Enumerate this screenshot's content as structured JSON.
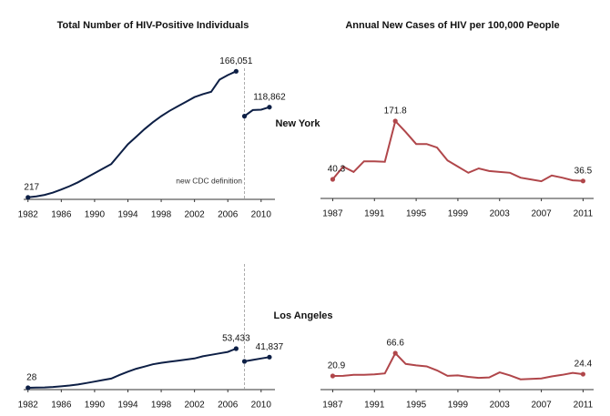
{
  "rows": [
    "New York",
    "Los Angeles"
  ],
  "chart_data": [
    {
      "type": "line",
      "title": "Total Number of HIV-Positive Individuals",
      "annotation": "new CDC definition",
      "reference_x": 2008,
      "xlim": [
        1981.7,
        2011.4
      ],
      "xticks": [
        1982,
        1986,
        1990,
        1994,
        1998,
        2002,
        2006,
        2010
      ],
      "ylim": [
        0,
        170000
      ],
      "series": [
        {
          "color": "#0d1f45",
          "x": [
            1982,
            1983,
            1984,
            1985,
            1986,
            1987,
            1988,
            1989,
            1990,
            1991,
            1992,
            1993,
            1994,
            1995,
            1996,
            1997,
            1998,
            1999,
            2000,
            2001,
            2002,
            2003,
            2004,
            2005,
            2006,
            2007
          ],
          "values": [
            217,
            1500,
            3500,
            6500,
            10500,
            15000,
            20000,
            26000,
            32000,
            38000,
            44000,
            57000,
            70000,
            80000,
            90000,
            99000,
            107000,
            114000,
            120000,
            126000,
            132000,
            136000,
            139000,
            155000,
            161000,
            166051
          ],
          "value_labels": [
            "217",
            null,
            null,
            null,
            null,
            null,
            null,
            null,
            null,
            null,
            null,
            null,
            null,
            null,
            null,
            null,
            null,
            null,
            null,
            null,
            null,
            null,
            null,
            null,
            null,
            "166,051"
          ]
        },
        {
          "color": "#0d1f45",
          "x": [
            2008,
            2009,
            2010,
            2011
          ],
          "values": [
            107000,
            115000,
            115500,
            118862
          ],
          "value_labels": [
            null,
            null,
            null,
            "118,862"
          ]
        }
      ]
    },
    {
      "type": "line",
      "title": "Annual New Cases of HIV per 100,000 People",
      "xlim": [
        1986.7,
        2011.4
      ],
      "xticks": [
        1987,
        1991,
        1995,
        1999,
        2003,
        2007,
        2011
      ],
      "ylim": [
        0,
        180
      ],
      "series": [
        {
          "color": "#b0464a",
          "x": [
            1987,
            1988,
            1989,
            1990,
            1991,
            1992,
            1993,
            1994,
            1995,
            1996,
            1997,
            1998,
            1999,
            2000,
            2001,
            2002,
            2003,
            2004,
            2005,
            2006,
            2007,
            2008,
            2009,
            2010,
            2011
          ],
          "values": [
            40.3,
            69,
            57,
            81,
            81,
            80,
            171.8,
            147,
            120,
            120,
            112,
            83,
            69,
            55,
            65,
            59,
            57,
            55,
            44,
            40,
            36,
            49,
            44,
            38,
            36.5
          ],
          "value_labels": [
            "40.3",
            null,
            null,
            null,
            null,
            null,
            "171.8",
            null,
            null,
            null,
            null,
            null,
            null,
            null,
            null,
            null,
            null,
            null,
            null,
            null,
            null,
            null,
            null,
            null,
            "36.5"
          ]
        }
      ]
    },
    {
      "type": "line",
      "reference_x": 2008,
      "xlim": [
        1981.7,
        2011.4
      ],
      "xticks": [
        1982,
        1986,
        1990,
        1994,
        1998,
        2002,
        2006,
        2010
      ],
      "ylim": [
        0,
        60000
      ],
      "series": [
        {
          "color": "#0d1f45",
          "x": [
            1982,
            1983,
            1984,
            1985,
            1986,
            1987,
            1988,
            1989,
            1990,
            1991,
            1992,
            1993,
            1994,
            1995,
            1996,
            1997,
            1998,
            1999,
            2000,
            2001,
            2002,
            2003,
            2004,
            2005,
            2006,
            2007
          ],
          "values": [
            28,
            200,
            500,
            1100,
            2000,
            3100,
            4500,
            6400,
            8500,
            10500,
            12500,
            17500,
            22000,
            26000,
            29000,
            32000,
            34000,
            35500,
            37000,
            38500,
            40000,
            43000,
            45000,
            47000,
            49000,
            53433
          ],
          "value_labels": [
            "28",
            null,
            null,
            null,
            null,
            null,
            null,
            null,
            null,
            null,
            null,
            null,
            null,
            null,
            null,
            null,
            null,
            null,
            null,
            null,
            null,
            null,
            null,
            null,
            null,
            "53,433"
          ]
        },
        {
          "color": "#0d1f45",
          "x": [
            2008,
            2009,
            2010,
            2011
          ],
          "values": [
            36000,
            38000,
            40000,
            41837
          ],
          "value_labels": [
            null,
            null,
            null,
            "41,837"
          ]
        }
      ]
    },
    {
      "type": "line",
      "xlim": [
        1986.7,
        2011.4
      ],
      "xticks": [
        1987,
        1991,
        1995,
        1999,
        2003,
        2007,
        2011
      ],
      "ylim": [
        0,
        75
      ],
      "series": [
        {
          "color": "#b0464a",
          "x": [
            1987,
            1988,
            1989,
            1990,
            1991,
            1992,
            1993,
            1994,
            1995,
            1996,
            1997,
            1998,
            1999,
            2000,
            2001,
            2002,
            2003,
            2004,
            2005,
            2006,
            2007,
            2008,
            2009,
            2010,
            2011
          ],
          "values": [
            20.9,
            21,
            23,
            23,
            24,
            26,
            66.6,
            45,
            42,
            40,
            32,
            21,
            22,
            19,
            17,
            18,
            28,
            22,
            14,
            15,
            16,
            20,
            23,
            27,
            24.4
          ],
          "value_labels": [
            "20.9",
            null,
            null,
            null,
            null,
            null,
            "66.6",
            null,
            null,
            null,
            null,
            null,
            null,
            null,
            null,
            null,
            null,
            null,
            null,
            null,
            null,
            null,
            null,
            null,
            "24.4"
          ]
        }
      ]
    }
  ]
}
